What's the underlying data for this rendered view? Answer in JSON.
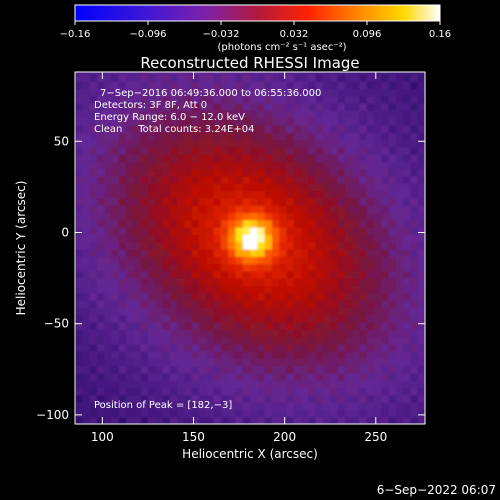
{
  "chart_data": {
    "type": "heatmap",
    "title": "Reconstructed RHESSI Image",
    "xlabel": "Heliocentric X (arcsec)",
    "ylabel": "Heliocentric Y (arcsec)",
    "xlim": [
      85,
      277
    ],
    "ylim": [
      -105,
      88
    ],
    "x_ticks": [
      100,
      150,
      200,
      250
    ],
    "y_ticks": [
      -100,
      -50,
      0,
      50
    ],
    "colorbar": {
      "min": -0.16,
      "max": 0.16,
      "ticks": [
        -0.16,
        -0.096,
        -0.032,
        0.032,
        0.096,
        0.16
      ],
      "tick_labels": [
        "−0.16",
        "−0.096",
        "−0.032",
        "0.032",
        "0.096",
        "0.16"
      ],
      "units_text": "(photons cm⁻² s⁻¹ asec⁻²)",
      "colormap": "blue-purple-red-yellow-white"
    },
    "peak": {
      "x": 182,
      "y": -3
    },
    "annotations": [
      "7−Sep−2016 06:49:36.000 to 06:55:36.000",
      "Detectors: 3F 8F, Att 0",
      "Energy Range: 6.0 − 12.0 keV",
      "Clean     Total counts: 3.24E+04"
    ],
    "footer_note": "Position of Peak = [182,−3]",
    "timestamp": "6−Sep−2022 06:07"
  }
}
